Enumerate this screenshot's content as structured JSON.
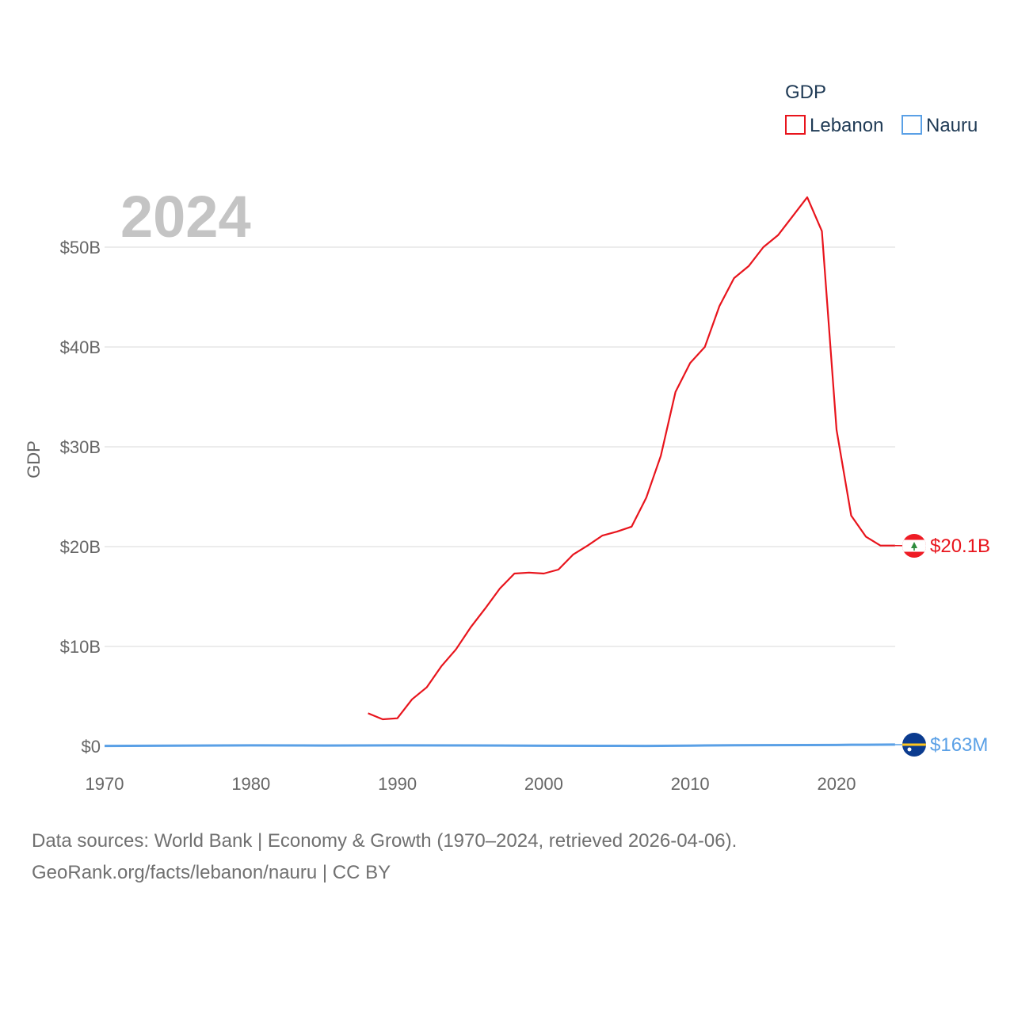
{
  "chart_data": {
    "type": "line",
    "title": "2024",
    "ylabel": "GDP",
    "xlabel": "",
    "xlim": [
      1970,
      2024
    ],
    "ylim": [
      0,
      55000000000
    ],
    "x_ticks": [
      1970,
      1980,
      1990,
      2000,
      2010,
      2020
    ],
    "x_tick_labels": [
      "1970",
      "1980",
      "1990",
      "2000",
      "2010",
      "2020"
    ],
    "y_ticks": [
      0,
      10000000000,
      20000000000,
      30000000000,
      40000000000,
      50000000000
    ],
    "y_tick_labels": [
      "$0",
      "$10B",
      "$20B",
      "$30B",
      "$40B",
      "$50B"
    ],
    "legend": {
      "title": "GDP",
      "position": "top-right"
    },
    "series": [
      {
        "name": "Lebanon",
        "color": "#e8141c",
        "end_label": "$20.1B",
        "flag_icon": "lebanon-flag-icon",
        "x": [
          1988,
          1989,
          1990,
          1991,
          1992,
          1993,
          1994,
          1995,
          1996,
          1997,
          1998,
          1999,
          2000,
          2001,
          2002,
          2003,
          2004,
          2005,
          2006,
          2007,
          2008,
          2009,
          2010,
          2011,
          2012,
          2013,
          2014,
          2015,
          2016,
          2017,
          2018,
          2019,
          2020,
          2021,
          2022,
          2023,
          2024
        ],
        "values": [
          3300000000.0,
          2700000000.0,
          2800000000.0,
          4700000000.0,
          5900000000.0,
          8000000000.0,
          9700000000.0,
          11900000000.0,
          13800000000.0,
          15800000000.0,
          17300000000.0,
          17400000000.0,
          17300000000.0,
          17700000000.0,
          19200000000.0,
          20100000000.0,
          21100000000.0,
          21500000000.0,
          22000000000.0,
          24900000000.0,
          29100000000.0,
          35500000000.0,
          38400000000.0,
          40000000000.0,
          44100000000.0,
          46900000000.0,
          48100000000.0,
          50000000000.0,
          51200000000.0,
          53100000000.0,
          55000000000.0,
          51600000000.0,
          31700000000.0,
          23100000000.0,
          21000000000.0,
          20100000000.0,
          20100000000.0
        ]
      },
      {
        "name": "Nauru",
        "color": "#5aa0e6",
        "end_label": "$163M",
        "flag_icon": "nauru-flag-icon",
        "x": [
          1970,
          1975,
          1980,
          1985,
          1990,
          1995,
          2000,
          2005,
          2007,
          2010,
          2013,
          2015,
          2020,
          2021,
          2022,
          2023,
          2024
        ],
        "values": [
          30000000.0,
          60000000.0,
          90000000.0,
          70000000.0,
          90000000.0,
          80000000.0,
          50000000.0,
          40000000.0,
          30000000.0,
          60000000.0,
          100000000.0,
          110000000.0,
          130000000.0,
          150000000.0,
          150000000.0,
          160000000.0,
          163000000.0
        ]
      }
    ]
  },
  "footer": {
    "line1": "Data sources: World Bank | Economy & Growth (1970–2024, retrieved 2026-04-06).",
    "line2": "GeoRank.org/facts/lebanon/nauru | CC BY"
  }
}
